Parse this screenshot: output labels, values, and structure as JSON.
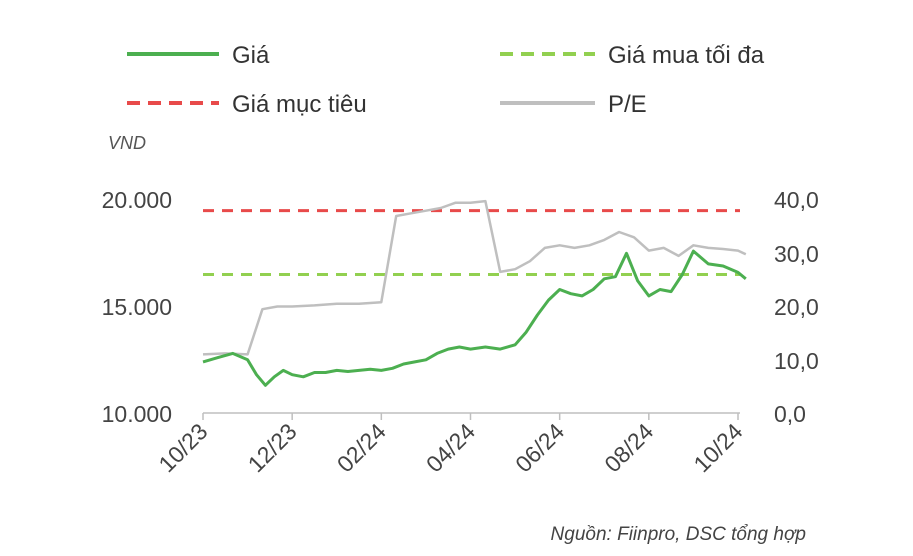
{
  "chart_data": {
    "type": "line",
    "legend": [
      {
        "label": "Giá",
        "color": "#4CAF50",
        "dash": "solid"
      },
      {
        "label": "Giá mua tối đa",
        "color": "#92D050",
        "dash": "dashed"
      },
      {
        "label": "Giá mục tiêu",
        "color": "#E84A4A",
        "dash": "dashed"
      },
      {
        "label": "P/E",
        "color": "#BFBFBF",
        "dash": "solid"
      }
    ],
    "legend_placement": "top",
    "y_left_unit": "VND",
    "y_left_ticks": [
      "20.000",
      "15.000",
      "10.000"
    ],
    "y_left_range": [
      10000,
      20000
    ],
    "y_right_ticks": [
      "40,0",
      "30,0",
      "20,0",
      "10,0",
      "0,0"
    ],
    "y_right_range": [
      0,
      40
    ],
    "x_ticks": [
      "10/23",
      "12/23",
      "02/24",
      "04/24",
      "06/24",
      "08/24",
      "10/24"
    ],
    "x_range_months": [
      "10/23",
      "10/24"
    ],
    "grid": false,
    "source": "Nguồn: Fiinpro, DSC tổng hợp",
    "series": [
      {
        "name": "Giá",
        "axis": "left",
        "color": "#4CAF50",
        "points": [
          [
            "10/23",
            12400
          ],
          [
            "10/23",
            12600
          ],
          [
            "10/23",
            12800
          ],
          [
            "11/23",
            12500
          ],
          [
            "11/23",
            11800
          ],
          [
            "11/23",
            11300
          ],
          [
            "11/23",
            11700
          ],
          [
            "11/23",
            12000
          ],
          [
            "12/23",
            11800
          ],
          [
            "12/23",
            11700
          ],
          [
            "12/23",
            11900
          ],
          [
            "12/23",
            11900
          ],
          [
            "01/24",
            12000
          ],
          [
            "01/24",
            11950
          ],
          [
            "01/24",
            12000
          ],
          [
            "01/24",
            12050
          ],
          [
            "02/24",
            12000
          ],
          [
            "02/24",
            12100
          ],
          [
            "02/24",
            12300
          ],
          [
            "02/24",
            12400
          ],
          [
            "03/24",
            12500
          ],
          [
            "03/24",
            12800
          ],
          [
            "03/24",
            13000
          ],
          [
            "03/24",
            13100
          ],
          [
            "04/24",
            13000
          ],
          [
            "04/24",
            13100
          ],
          [
            "04/24",
            13000
          ],
          [
            "05/24",
            13200
          ],
          [
            "05/24",
            13800
          ],
          [
            "05/24",
            14600
          ],
          [
            "05/24",
            15300
          ],
          [
            "06/24",
            15800
          ],
          [
            "06/24",
            15600
          ],
          [
            "06/24",
            15500
          ],
          [
            "06/24",
            15800
          ],
          [
            "07/24",
            16300
          ],
          [
            "07/24",
            16400
          ],
          [
            "07/24",
            17500
          ],
          [
            "07/24",
            16200
          ],
          [
            "08/24",
            15500
          ],
          [
            "08/24",
            15800
          ],
          [
            "08/24",
            15700
          ],
          [
            "08/24",
            16500
          ],
          [
            "09/24",
            17600
          ],
          [
            "09/24",
            17000
          ],
          [
            "09/24",
            16900
          ],
          [
            "10/24",
            16600
          ],
          [
            "10/24",
            16300
          ]
        ]
      },
      {
        "name": "Giá mua tối đa",
        "axis": "left",
        "color": "#92D050",
        "constant": 16500
      },
      {
        "name": "Giá mục tiêu",
        "axis": "left",
        "color": "#E84A4A",
        "constant": 19500
      },
      {
        "name": "P/E",
        "axis": "right",
        "color": "#BFBFBF",
        "points": [
          [
            "10/23",
            11.0
          ],
          [
            "10/23",
            11.2
          ],
          [
            "11/23",
            11.0
          ],
          [
            "11/23",
            19.5
          ],
          [
            "11/23",
            20.0
          ],
          [
            "12/23",
            20.0
          ],
          [
            "12/23",
            20.2
          ],
          [
            "01/24",
            20.5
          ],
          [
            "01/24",
            20.5
          ],
          [
            "02/24",
            20.8
          ],
          [
            "02/24",
            37.0
          ],
          [
            "02/24",
            37.5
          ],
          [
            "03/24",
            38.0
          ],
          [
            "03/24",
            38.5
          ],
          [
            "03/24",
            39.5
          ],
          [
            "04/24",
            39.5
          ],
          [
            "04/24",
            39.8
          ],
          [
            "04/24",
            26.5
          ],
          [
            "05/24",
            27.0
          ],
          [
            "05/24",
            28.5
          ],
          [
            "05/24",
            31.0
          ],
          [
            "06/24",
            31.5
          ],
          [
            "06/24",
            31.0
          ],
          [
            "06/24",
            31.5
          ],
          [
            "07/24",
            32.5
          ],
          [
            "07/24",
            34.0
          ],
          [
            "07/24",
            33.0
          ],
          [
            "08/24",
            30.5
          ],
          [
            "08/24",
            31.0
          ],
          [
            "08/24",
            29.5
          ],
          [
            "09/24",
            31.5
          ],
          [
            "09/24",
            31.0
          ],
          [
            "09/24",
            30.8
          ],
          [
            "10/24",
            30.5
          ],
          [
            "10/24",
            29.8
          ]
        ]
      }
    ]
  }
}
